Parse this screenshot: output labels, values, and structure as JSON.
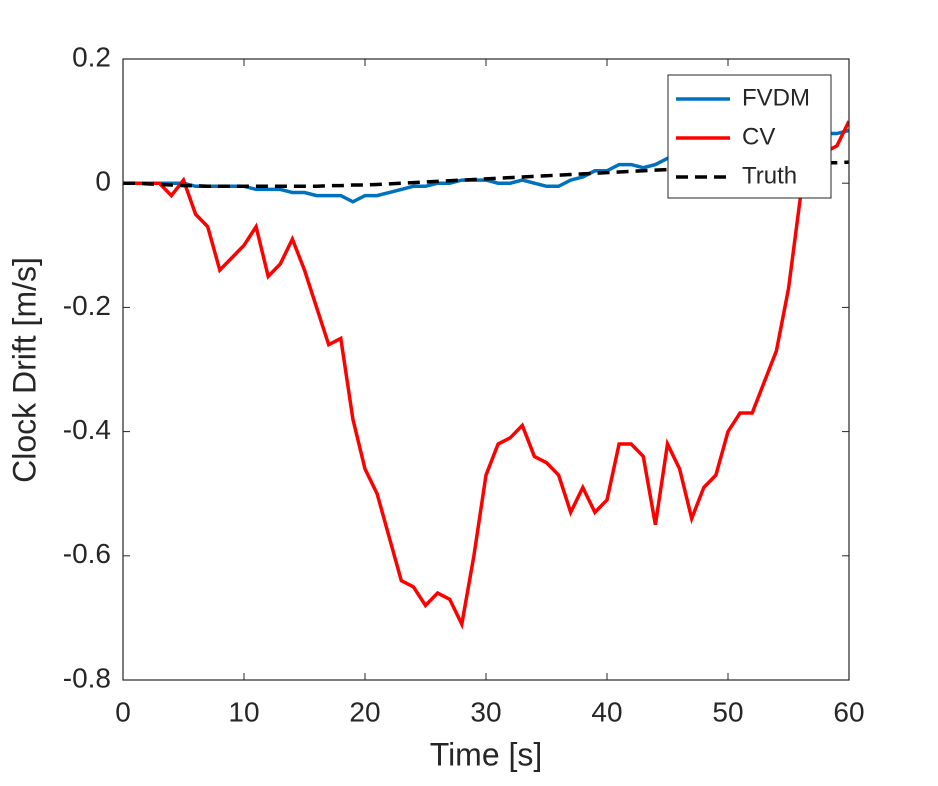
{
  "chart_data": {
    "type": "line",
    "xlabel": "Time [s]",
    "ylabel": "Clock Drift [m/s]",
    "x": [
      0,
      1,
      2,
      3,
      4,
      5,
      6,
      7,
      8,
      9,
      10,
      11,
      12,
      13,
      14,
      15,
      16,
      17,
      18,
      19,
      20,
      21,
      22,
      23,
      24,
      25,
      26,
      27,
      28,
      29,
      30,
      31,
      32,
      33,
      34,
      35,
      36,
      37,
      38,
      39,
      40,
      41,
      42,
      43,
      44,
      45,
      46,
      47,
      48,
      49,
      50,
      51,
      52,
      53,
      54,
      55,
      56,
      57,
      58,
      59,
      60
    ],
    "series": [
      {
        "name": "FVDM",
        "color": "#0072bd",
        "line_style": "solid",
        "values": [
          0,
          0,
          0,
          0,
          0,
          0,
          -0.005,
          -0.005,
          -0.005,
          -0.005,
          -0.005,
          -0.01,
          -0.01,
          -0.01,
          -0.015,
          -0.015,
          -0.02,
          -0.02,
          -0.02,
          -0.03,
          -0.02,
          -0.02,
          -0.015,
          -0.01,
          -0.005,
          -0.005,
          0,
          0,
          0.005,
          0.005,
          0.005,
          0,
          0,
          0.005,
          0,
          -0.005,
          -0.005,
          0.005,
          0.01,
          0.02,
          0.02,
          0.03,
          0.03,
          0.025,
          0.03,
          0.04,
          0.04,
          0.05,
          0.05,
          0.055,
          0.06,
          0.06,
          0.065,
          0.07,
          0.07,
          0.075,
          0.075,
          0.08,
          0.08,
          0.08,
          0.085
        ]
      },
      {
        "name": "CV",
        "color": "#ff0000",
        "line_style": "solid",
        "values": [
          0,
          0,
          0,
          0,
          -0.02,
          0.005,
          -0.05,
          -0.07,
          -0.14,
          -0.12,
          -0.1,
          -0.07,
          -0.15,
          -0.13,
          -0.09,
          -0.14,
          -0.2,
          -0.26,
          -0.25,
          -0.38,
          -0.46,
          -0.5,
          -0.57,
          -0.64,
          -0.65,
          -0.68,
          -0.66,
          -0.67,
          -0.71,
          -0.6,
          -0.47,
          -0.42,
          -0.41,
          -0.39,
          -0.44,
          -0.45,
          -0.47,
          -0.53,
          -0.49,
          -0.53,
          -0.51,
          -0.42,
          -0.42,
          -0.44,
          -0.55,
          -0.42,
          -0.46,
          -0.54,
          -0.49,
          -0.47,
          -0.4,
          -0.37,
          -0.37,
          -0.32,
          -0.27,
          -0.17,
          -0.02,
          0.08,
          0.05,
          0.06,
          0.1
        ]
      },
      {
        "name": "Truth",
        "color": "#000000",
        "line_style": "dashed",
        "values": [
          0,
          0,
          -0.001,
          -0.002,
          -0.003,
          -0.004,
          -0.004,
          -0.005,
          -0.005,
          -0.005,
          -0.005,
          -0.005,
          -0.005,
          -0.005,
          -0.005,
          -0.005,
          -0.005,
          -0.004,
          -0.004,
          -0.003,
          -0.003,
          -0.002,
          -0.001,
          0,
          0.001,
          0.002,
          0.003,
          0.004,
          0.005,
          0.006,
          0.007,
          0.008,
          0.009,
          0.01,
          0.011,
          0.012,
          0.013,
          0.014,
          0.015,
          0.016,
          0.017,
          0.018,
          0.019,
          0.02,
          0.021,
          0.022,
          0.023,
          0.024,
          0.025,
          0.026,
          0.027,
          0.028,
          0.029,
          0.03,
          0.03,
          0.031,
          0.032,
          0.032,
          0.033,
          0.033,
          0.034
        ]
      }
    ],
    "xlim": [
      0,
      60
    ],
    "xticks": [
      0,
      10,
      20,
      30,
      40,
      50,
      60
    ],
    "ylim": [
      -0.8,
      0.2
    ],
    "yticks": [
      -0.8,
      -0.6,
      -0.4,
      -0.2,
      0,
      0.2
    ],
    "grid": false,
    "legend": "upper right"
  }
}
